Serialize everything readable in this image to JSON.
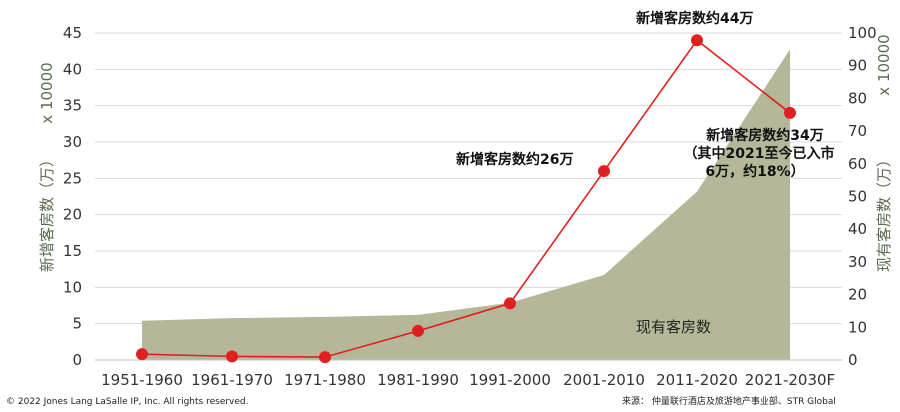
{
  "chart_data": {
    "type": "line",
    "categories": [
      "1951-1960",
      "1961-1970",
      "1971-1980",
      "1981-1990",
      "1991-2000",
      "2001-2010",
      "2011-2020",
      "2021-2030F"
    ],
    "left_axis": {
      "label": "新增客房数（万）",
      "multiplier": "x 10000",
      "ylim": [
        0,
        45
      ],
      "ticks": [
        0,
        5,
        10,
        15,
        20,
        25,
        30,
        35,
        40,
        45
      ]
    },
    "right_axis": {
      "label": "现有客房数（万）",
      "multiplier": "x 10000",
      "ylim": [
        0,
        100
      ],
      "ticks": [
        0,
        10,
        20,
        30,
        40,
        50,
        60,
        70,
        80,
        90,
        100
      ]
    },
    "series": [
      {
        "name": "新增客房数",
        "type": "line",
        "axis": "left",
        "color": "#e02020",
        "values": [
          0.8,
          0.5,
          0.4,
          4.0,
          7.8,
          26,
          44,
          34
        ]
      },
      {
        "name": "现有客房数",
        "type": "area",
        "axis": "right",
        "color": "#b5b898",
        "values": [
          12,
          12.8,
          13.2,
          13.8,
          17.5,
          26,
          51.5,
          95
        ]
      }
    ],
    "annotations": [
      {
        "text": "新增客房数约44万"
      },
      {
        "text": "新增客房数约26万"
      },
      {
        "lines": [
          "新增客房数约34万",
          "（其中2021至今已入市",
          "6万，约18%）"
        ]
      }
    ],
    "area_label": "现有客房数",
    "grid": true
  },
  "footer": {
    "copyright": "© 2022 Jones Lang LaSalle IP, Inc. All rights reserved.",
    "source": "来源： 仲量联行酒店及旅游地产事业部、STR Global"
  }
}
